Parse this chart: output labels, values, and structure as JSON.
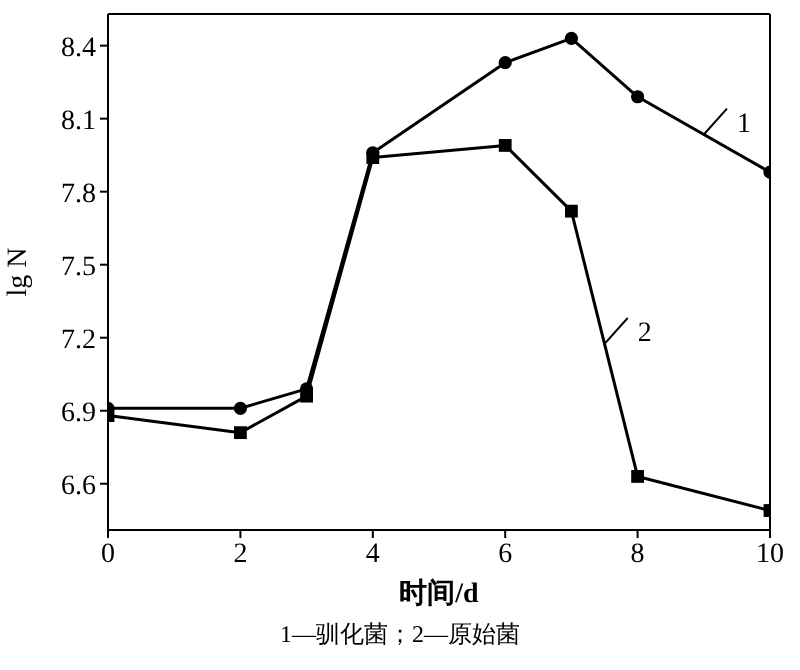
{
  "chart_data": {
    "type": "line",
    "xlabel": "时间/d",
    "ylabel": "lg N",
    "x": [
      0,
      2,
      3,
      4,
      6,
      7,
      8,
      10
    ],
    "series": [
      {
        "name": "1",
        "color": "#000000",
        "marker": "circle",
        "values": [
          6.91,
          6.91,
          6.99,
          7.96,
          8.33,
          8.43,
          8.19,
          7.88
        ]
      },
      {
        "name": "2",
        "color": "#000000",
        "marker": "square",
        "values": [
          6.88,
          6.81,
          6.96,
          7.94,
          7.99,
          7.72,
          6.63,
          6.49
        ]
      }
    ],
    "xlim": [
      0,
      10
    ],
    "xticks": [
      0,
      2,
      4,
      6,
      8,
      10
    ],
    "ylim": [
      6.41,
      8.53
    ],
    "yticks": [
      6.6,
      6.9,
      7.2,
      7.5,
      7.8,
      8.1,
      8.4
    ],
    "grid": false,
    "legend": "right",
    "annotations": [
      "1—驯化菌；2—原始菌"
    ]
  }
}
